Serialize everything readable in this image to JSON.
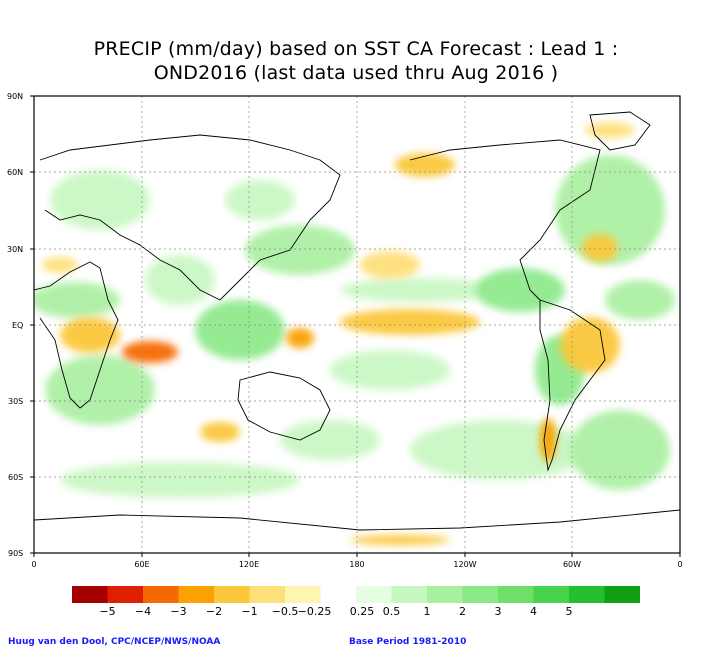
{
  "title_line1": "PRECIP (mm/day) based on SST CA Forecast : Lead 1 :",
  "title_line2": "OND2016 (last data used thru Aug 2016 )",
  "lat_labels": [
    "90N",
    "60N",
    "30N",
    "EQ",
    "30S",
    "60S",
    "90S"
  ],
  "lon_labels": [
    "0",
    "60E",
    "120E",
    "180",
    "120W",
    "60W",
    "0"
  ],
  "colorbar": {
    "colors": [
      "#a50000",
      "#e01e00",
      "#f56a00",
      "#fba100",
      "#fbc83a",
      "#fde07a",
      "#fdf6b0",
      "#ffffff",
      "#e5fde0",
      "#c7f7c0",
      "#a9efa0",
      "#8ae887",
      "#6ee06a",
      "#49d24b",
      "#24bf2c",
      "#119f16"
    ],
    "labels": [
      "−5",
      "−4",
      "−3",
      "−2",
      "−1",
      "−0.5",
      "−0.25",
      "0.25",
      "0.5",
      "1",
      "2",
      "3",
      "4",
      "5"
    ]
  },
  "credit_left": "Huug van den Dool, CPC/NCEP/NWS/NOAA",
  "credit_right": "Base Period 1981-2010"
}
